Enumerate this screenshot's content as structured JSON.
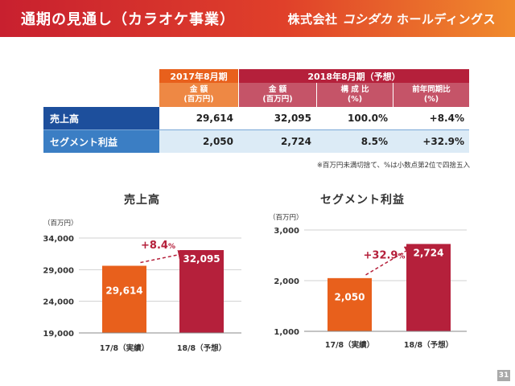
{
  "header": {
    "title": "通期の見通し（カラオケ事業）",
    "logo_prefix": "株式会社",
    "logo_brand": "コシダカ",
    "logo_suffix": "ホールディングス"
  },
  "table": {
    "col_2017": "2017年8月期",
    "col_2018": "2018年8月期（予想）",
    "sub_amount_2017": "金 額\n(百万円)",
    "sub_amount_2018": "金 額\n(百万円)",
    "sub_ratio": "構 成 比\n(%)",
    "sub_yoy": "前年同期比\n(%)",
    "rows": [
      {
        "label": "売上高",
        "v2017": "29,614",
        "v2018": "32,095",
        "ratio": "100.0%",
        "yoy": "+8.4%"
      },
      {
        "label": "セグメント利益",
        "v2017": "2,050",
        "v2018": "2,724",
        "ratio": "8.5%",
        "yoy": "+32.9%"
      }
    ],
    "note": "※百万円未満切捨て、%は小数点第2位で四捨五入"
  },
  "chart_data": [
    {
      "type": "bar",
      "title": "売上高",
      "unit": "（百万円）",
      "categories": [
        "17/8（実績）",
        "18/8（予想）"
      ],
      "values": [
        29614,
        32095
      ],
      "value_labels": [
        "29,614",
        "32,095"
      ],
      "yticks": [
        19000,
        24000,
        29000,
        34000
      ],
      "ytick_labels": [
        "19,000",
        "24,000",
        "29,000",
        "34,000"
      ],
      "ylim": [
        19000,
        34000
      ],
      "colors": [
        "#e8601c",
        "#b5203b"
      ],
      "change_label": "+8.4",
      "change_unit": "%"
    },
    {
      "type": "bar",
      "title": "セグメント利益",
      "unit": "（百万円）",
      "categories": [
        "17/8（実績）",
        "18/8（予想）"
      ],
      "values": [
        2050,
        2724
      ],
      "value_labels": [
        "2,050",
        "2,724"
      ],
      "yticks": [
        1000,
        2000,
        3000
      ],
      "ytick_labels": [
        "1,000",
        "2,000",
        "3,000"
      ],
      "ylim": [
        1000,
        3000
      ],
      "colors": [
        "#e8601c",
        "#b5203b"
      ],
      "change_label": "+32.9",
      "change_unit": "%"
    }
  ],
  "page_number": "31"
}
